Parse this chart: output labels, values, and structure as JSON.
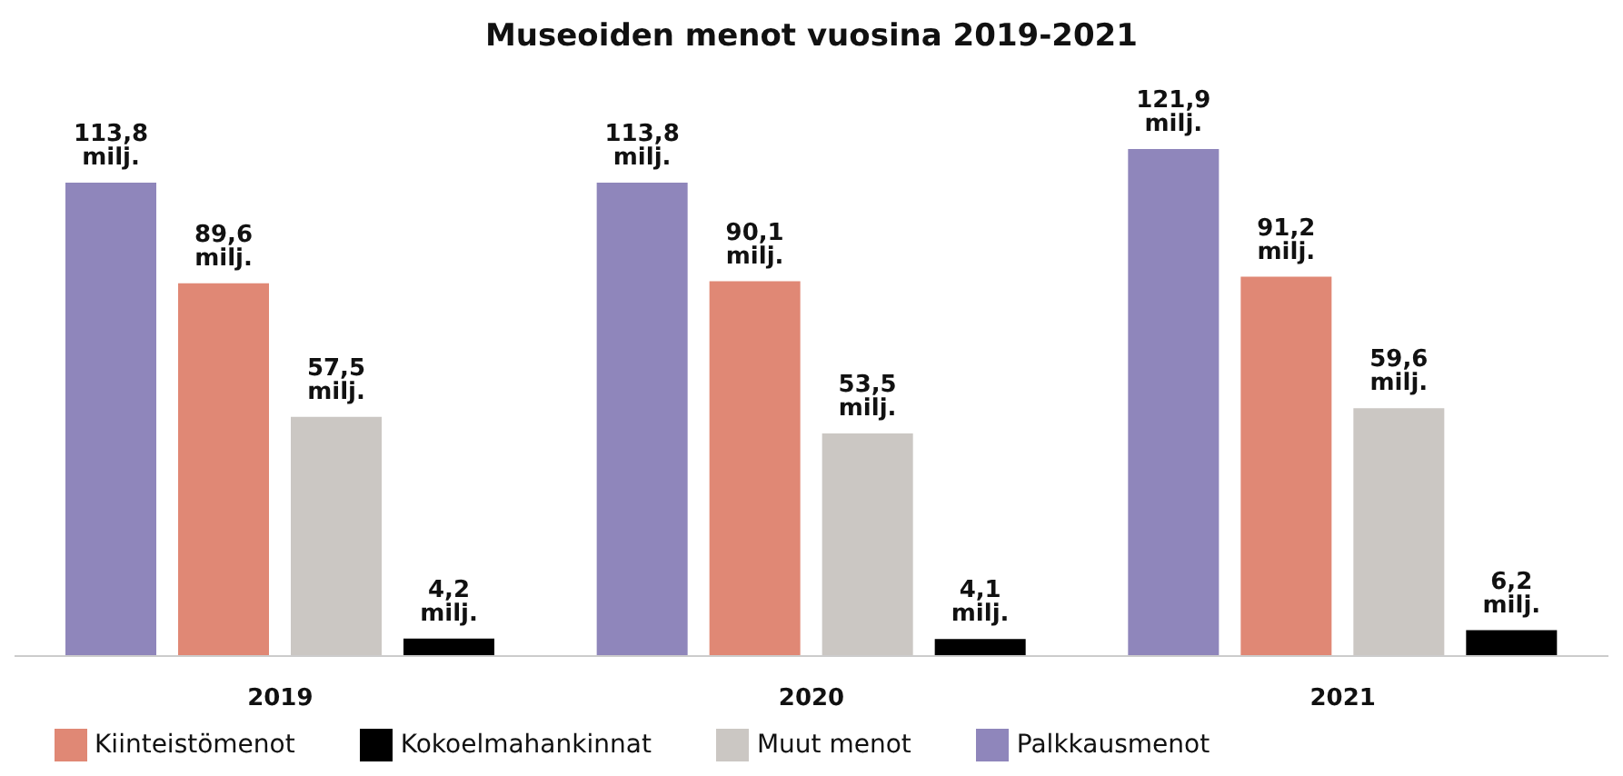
{
  "chart_data": {
    "type": "bar",
    "title": "Museoiden menot vuosina 2019-2021",
    "categories": [
      "2019",
      "2020",
      "2021"
    ],
    "series": [
      {
        "name": "Palkkausmenot",
        "color": "#8f86bb",
        "values": [
          113.8,
          113.8,
          121.9
        ],
        "value_labels": [
          "113,8 milj.",
          "113,8 milj.",
          "121,9 milj."
        ]
      },
      {
        "name": "Kiinteistömenot",
        "color": "#e08875",
        "values": [
          89.6,
          90.1,
          91.2
        ],
        "value_labels": [
          "89,6 milj.",
          "90,1 milj.",
          "91,2 milj."
        ]
      },
      {
        "name": "Muut menot",
        "color": "#cbc7c3",
        "values": [
          57.5,
          53.5,
          59.6
        ],
        "value_labels": [
          "57,5 milj.",
          "53,5 milj.",
          "59,6 milj."
        ]
      },
      {
        "name": "Kokoelmahankinnat",
        "color": "#000000",
        "values": [
          4.2,
          4.1,
          6.2
        ],
        "value_labels": [
          "4,2 milj.",
          "4,1 milj.",
          "6,2 milj."
        ]
      }
    ],
    "legend": "bottom",
    "tick_labels": "x"
  }
}
